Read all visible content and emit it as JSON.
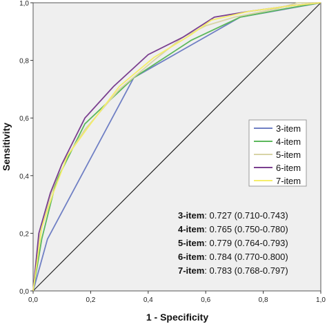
{
  "chart_data": {
    "type": "line",
    "xlabel": "1 - Specificity",
    "ylabel": "Sensitivity",
    "xlim": [
      0,
      1
    ],
    "ylim": [
      0,
      1
    ],
    "x_ticks": [
      "0,0",
      "0,2",
      "0,4",
      "0,6",
      "0,8",
      "1,0"
    ],
    "y_ticks": [
      "0,0",
      "0,2",
      "0,4",
      "0,6",
      "0,8",
      "1,0"
    ],
    "grid": false,
    "legend_position": "right",
    "reference_line": true,
    "series": [
      {
        "name": "3-item",
        "color": "#6f7fc4",
        "x": [
          0.0,
          0.05,
          0.35,
          0.72,
          1.0
        ],
        "y": [
          0.0,
          0.18,
          0.74,
          0.95,
          1.0
        ]
      },
      {
        "name": "4-item",
        "color": "#5cb85c",
        "x": [
          0.0,
          0.03,
          0.08,
          0.18,
          0.35,
          0.55,
          0.72,
          0.88,
          1.0
        ],
        "y": [
          0.0,
          0.18,
          0.38,
          0.58,
          0.74,
          0.87,
          0.95,
          0.98,
          1.0
        ]
      },
      {
        "name": "5-item",
        "color": "#d8d4a6",
        "x": [
          0.0,
          0.02,
          0.06,
          0.1,
          0.18,
          0.3,
          0.42,
          0.52,
          0.6,
          0.7,
          0.85,
          0.92,
          1.0
        ],
        "y": [
          0.0,
          0.18,
          0.33,
          0.44,
          0.56,
          0.7,
          0.8,
          0.88,
          0.92,
          0.95,
          0.98,
          1.0,
          1.0
        ]
      },
      {
        "name": "6-item",
        "color": "#7a3f8f",
        "x": [
          0.0,
          0.02,
          0.06,
          0.1,
          0.18,
          0.28,
          0.4,
          0.52,
          0.63,
          0.75,
          0.9,
          1.0
        ],
        "y": [
          0.0,
          0.2,
          0.34,
          0.44,
          0.6,
          0.71,
          0.82,
          0.88,
          0.95,
          0.97,
          0.99,
          1.0
        ]
      },
      {
        "name": "7-item",
        "color": "#f5ee6a",
        "x": [
          0.0,
          0.03,
          0.07,
          0.12,
          0.2,
          0.3,
          0.42,
          0.55,
          0.62,
          0.75,
          0.9,
          1.0
        ],
        "y": [
          0.0,
          0.22,
          0.34,
          0.47,
          0.58,
          0.71,
          0.81,
          0.89,
          0.94,
          0.97,
          0.99,
          1.0
        ]
      }
    ],
    "auc_stats": [
      {
        "label": "3-item",
        "value": ": 0.727 (0.710-0.743)"
      },
      {
        "label": "4-item",
        "value": ": 0.765 (0.750-0.780)"
      },
      {
        "label": "5-item",
        "value": ": 0.779 (0.764-0.793)"
      },
      {
        "label": "6-item",
        "value": ": 0.784 (0.770-0.800)"
      },
      {
        "label": "7-item",
        "value": ": 0.783 (0.768-0.797)"
      }
    ]
  }
}
